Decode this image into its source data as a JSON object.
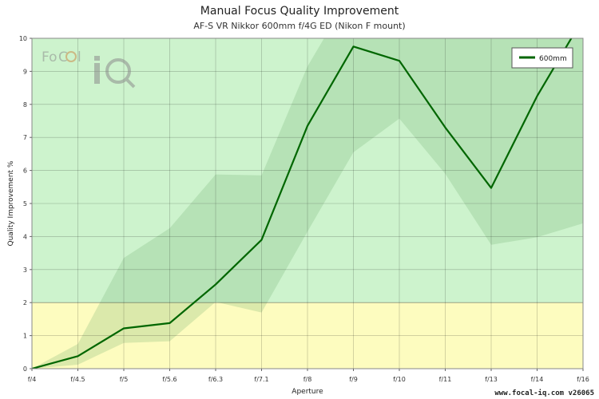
{
  "chart_data": {
    "type": "line",
    "title": "Manual Focus Quality Improvement",
    "subtitle": "AF-S VR Nikkor 600mm f/4G ED (Nikon F mount)",
    "xlabel": "Aperture",
    "ylabel": "Quality Improvement %",
    "categories": [
      "f/4",
      "f/4.5",
      "f/5",
      "f/5.6",
      "f/6.3",
      "f/7.1",
      "f/8",
      "f/9",
      "f/10",
      "f/11",
      "f/13",
      "f/14",
      "f/16"
    ],
    "ylim": [
      0,
      10
    ],
    "yticks": [
      0,
      1,
      2,
      3,
      4,
      5,
      6,
      7,
      8,
      9,
      10
    ],
    "grid": true,
    "legend_position": "top-right",
    "threshold": 2,
    "zones": [
      {
        "name": "low",
        "from": 0,
        "to": 2,
        "color": "#fdfcbf"
      },
      {
        "name": "high",
        "from": 2,
        "to": 10,
        "color": "#cdf3cd"
      }
    ],
    "series": [
      {
        "name": "600mm",
        "color": "#006600",
        "values": [
          0.0,
          0.38,
          1.22,
          1.38,
          2.55,
          3.9,
          7.35,
          9.75,
          9.32,
          7.3,
          5.47,
          8.25,
          10.6
        ],
        "band_upper": [
          0.0,
          0.75,
          3.35,
          4.25,
          5.88,
          5.85,
          9.15,
          11.5,
          11.5,
          11.5,
          11.5,
          11.5,
          11.5
        ],
        "band_lower": [
          0.0,
          0.12,
          0.78,
          0.83,
          2.02,
          1.7,
          4.15,
          6.55,
          7.57,
          5.9,
          3.75,
          3.98,
          4.4
        ]
      }
    ]
  },
  "footer": "www.focal-iq.com v26065",
  "logo": {
    "text": "FoCal iQ"
  }
}
